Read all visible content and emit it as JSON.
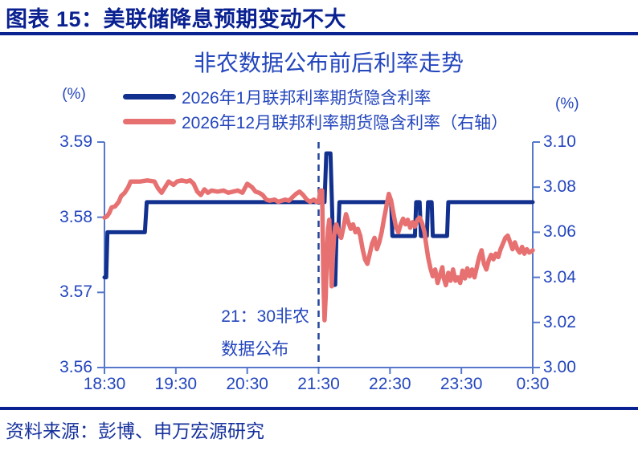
{
  "header": {
    "title": "图表 15：美联储降息预期变动不大"
  },
  "chart": {
    "title": "非农数据公布前后利率走势",
    "left_axis_unit": "(%)",
    "right_axis_unit": "(%)"
  },
  "annotation": {
    "line1": "21：30非农",
    "line2": "数据公布"
  },
  "source": {
    "text": "资料来源：彭博、申万宏源研究"
  },
  "colors": {
    "header_navy": "#0a2191",
    "chart_text_blue": "#2446bd",
    "axis_line": "#5577cc",
    "event_dash": "#24459c",
    "series_blue": "#12318f",
    "series_red": "#e77071"
  },
  "chart_data": {
    "type": "line",
    "title": "非农数据公布前后利率走势",
    "grid": false,
    "legend_position": "top",
    "x_axis": {
      "tick_labels": [
        "18:30",
        "19:30",
        "20:30",
        "21:30",
        "22:30",
        "23:30",
        "0:30"
      ],
      "tick_minutes": [
        0,
        60,
        120,
        180,
        240,
        300,
        360
      ],
      "range_minutes": [
        0,
        360
      ]
    },
    "left_axis": {
      "unit": "(%)",
      "tick_labels": [
        "3.59",
        "3.58",
        "3.57",
        "3.56"
      ],
      "tick_values": [
        3.59,
        3.58,
        3.57,
        3.56
      ],
      "range": [
        3.56,
        3.59
      ]
    },
    "right_axis": {
      "unit": "(%)",
      "tick_labels": [
        "3.10",
        "3.08",
        "3.06",
        "3.04",
        "3.02",
        "3.00"
      ],
      "tick_values": [
        3.1,
        3.08,
        3.06,
        3.04,
        3.02,
        3.0
      ],
      "range": [
        3.0,
        3.1
      ]
    },
    "event_line": {
      "minute": 180,
      "label": "21：30非农数据公布"
    },
    "series": [
      {
        "name": "2026年1月联邦利率期货隐含利率",
        "axis": "left",
        "color": "#12318f",
        "stroke_width": 5,
        "points": [
          [
            0,
            3.572
          ],
          [
            1.5,
            3.572
          ],
          [
            2.5,
            3.578
          ],
          [
            34,
            3.578
          ],
          [
            35.5,
            3.582
          ],
          [
            185,
            3.582
          ],
          [
            186.5,
            3.5885
          ],
          [
            190,
            3.5885
          ],
          [
            191.5,
            3.5805
          ],
          [
            192.5,
            3.571
          ],
          [
            194,
            3.571
          ],
          [
            195,
            3.5775
          ],
          [
            196.5,
            3.5775
          ],
          [
            197.5,
            3.582
          ],
          [
            241,
            3.582
          ],
          [
            242,
            3.5775
          ],
          [
            261,
            3.5775
          ],
          [
            262,
            3.582
          ],
          [
            265,
            3.582
          ],
          [
            266,
            3.5775
          ],
          [
            271,
            3.5775
          ],
          [
            272,
            3.582
          ],
          [
            275,
            3.582
          ],
          [
            276,
            3.5775
          ],
          [
            288,
            3.5775
          ],
          [
            289,
            3.582
          ],
          [
            360,
            3.582
          ]
        ]
      },
      {
        "name": "2026年12月联邦利率期货隐含利率（右轴）",
        "axis": "right",
        "color": "#e77071",
        "stroke_width": 5.5,
        "points": [
          [
            0,
            3.0665
          ],
          [
            2,
            3.067
          ],
          [
            4,
            3.0685
          ],
          [
            6,
            3.071
          ],
          [
            9,
            3.0715
          ],
          [
            12,
            3.0735
          ],
          [
            14,
            3.076
          ],
          [
            17,
            3.0775
          ],
          [
            20,
            3.08
          ],
          [
            22,
            3.0825
          ],
          [
            30,
            3.0825
          ],
          [
            36,
            3.083
          ],
          [
            42,
            3.0825
          ],
          [
            45,
            3.0795
          ],
          [
            48,
            3.0775
          ],
          [
            51,
            3.08
          ],
          [
            54,
            3.0825
          ],
          [
            58,
            3.081
          ],
          [
            61,
            3.0825
          ],
          [
            65,
            3.083
          ],
          [
            69,
            3.0825
          ],
          [
            72,
            3.083
          ],
          [
            75,
            3.0815
          ],
          [
            78,
            3.078
          ],
          [
            81,
            3.0765
          ],
          [
            84,
            3.079
          ],
          [
            87,
            3.0775
          ],
          [
            90,
            3.0785
          ],
          [
            95,
            3.078
          ],
          [
            100,
            3.0785
          ],
          [
            104,
            3.0775
          ],
          [
            108,
            3.078
          ],
          [
            112,
            3.0785
          ],
          [
            116,
            3.0775
          ],
          [
            120,
            3.0815
          ],
          [
            124,
            3.08
          ],
          [
            127,
            3.078
          ],
          [
            130,
            3.0775
          ],
          [
            133,
            3.0765
          ],
          [
            136,
            3.0745
          ],
          [
            139,
            3.074
          ],
          [
            143,
            3.0745
          ],
          [
            146,
            3.0735
          ],
          [
            149,
            3.074
          ],
          [
            152,
            3.0745
          ],
          [
            155,
            3.074
          ],
          [
            158,
            3.0755
          ],
          [
            161,
            3.077
          ],
          [
            164,
            3.078
          ],
          [
            167,
            3.0765
          ],
          [
            170,
            3.0745
          ],
          [
            173,
            3.0735
          ],
          [
            176,
            3.0745
          ],
          [
            178,
            3.0735
          ],
          [
            180,
            3.0735
          ],
          [
            181.5,
            3.0785
          ],
          [
            183,
            3.0785
          ],
          [
            184,
            3.04
          ],
          [
            185,
            3.021
          ],
          [
            186,
            3.032
          ],
          [
            187,
            3.052
          ],
          [
            188,
            3.0615
          ],
          [
            189,
            3.0655
          ],
          [
            190,
            3.05
          ],
          [
            191,
            3.036
          ],
          [
            192,
            3.049
          ],
          [
            193,
            3.058
          ],
          [
            194,
            3.0625
          ],
          [
            195,
            3.0635
          ],
          [
            197,
            3.06
          ],
          [
            199,
            3.0575
          ],
          [
            201,
            3.0625
          ],
          [
            203,
            3.068
          ],
          [
            205,
            3.0645
          ],
          [
            207,
            3.0615
          ],
          [
            209,
            3.0635
          ],
          [
            211,
            3.06
          ],
          [
            213,
            3.0615
          ],
          [
            215,
            3.0585
          ],
          [
            217,
            3.0525
          ],
          [
            219,
            3.048
          ],
          [
            221,
            3.046
          ],
          [
            223,
            3.0505
          ],
          [
            225,
            3.055
          ],
          [
            227,
            3.0575
          ],
          [
            229,
            3.0525
          ],
          [
            231,
            3.0555
          ],
          [
            233,
            3.06
          ],
          [
            235,
            3.066
          ],
          [
            237,
            3.0715
          ],
          [
            239,
            3.077
          ],
          [
            241,
            3.074
          ],
          [
            243,
            3.068
          ],
          [
            245,
            3.0625
          ],
          [
            247,
            3.06
          ],
          [
            249,
            3.0635
          ],
          [
            251,
            3.066
          ],
          [
            253,
            3.0635
          ],
          [
            255,
            3.0655
          ],
          [
            257,
            3.062
          ],
          [
            259,
            3.0645
          ],
          [
            261,
            3.0625
          ],
          [
            263,
            3.0655
          ],
          [
            265,
            3.0665
          ],
          [
            267,
            3.064
          ],
          [
            269,
            3.06
          ],
          [
            270,
            3.056
          ],
          [
            272,
            3.049
          ],
          [
            274,
            3.044
          ],
          [
            276,
            3.0405
          ],
          [
            278,
            3.0435
          ],
          [
            280,
            3.0375
          ],
          [
            282,
            3.041
          ],
          [
            284,
            3.0445
          ],
          [
            285,
            3.04
          ],
          [
            287,
            3.0365
          ],
          [
            289,
            3.042
          ],
          [
            291,
            3.0385
          ],
          [
            293,
            3.0435
          ],
          [
            295,
            3.0385
          ],
          [
            297,
            3.04
          ],
          [
            299,
            3.0375
          ],
          [
            301,
            3.043
          ],
          [
            303,
            3.0395
          ],
          [
            305,
            3.044
          ],
          [
            307,
            3.0405
          ],
          [
            309,
            3.0435
          ],
          [
            311,
            3.04
          ],
          [
            313,
            3.0445
          ],
          [
            315,
            3.049
          ],
          [
            317,
            3.052
          ],
          [
            319,
            3.046
          ],
          [
            321,
            3.0435
          ],
          [
            323,
            3.0475
          ],
          [
            325,
            3.05
          ],
          [
            327,
            3.048
          ],
          [
            329,
            3.0505
          ],
          [
            331,
            3.049
          ],
          [
            333,
            3.0525
          ],
          [
            335,
            3.055
          ],
          [
            337,
            3.0575
          ],
          [
            339,
            3.0585
          ],
          [
            341,
            3.0555
          ],
          [
            343,
            3.0525
          ],
          [
            345,
            3.0555
          ],
          [
            347,
            3.0525
          ],
          [
            349,
            3.051
          ],
          [
            351,
            3.0535
          ],
          [
            353,
            3.0505
          ],
          [
            355,
            3.0525
          ],
          [
            357,
            3.051
          ],
          [
            359,
            3.0515
          ],
          [
            360,
            3.052
          ]
        ]
      }
    ]
  }
}
